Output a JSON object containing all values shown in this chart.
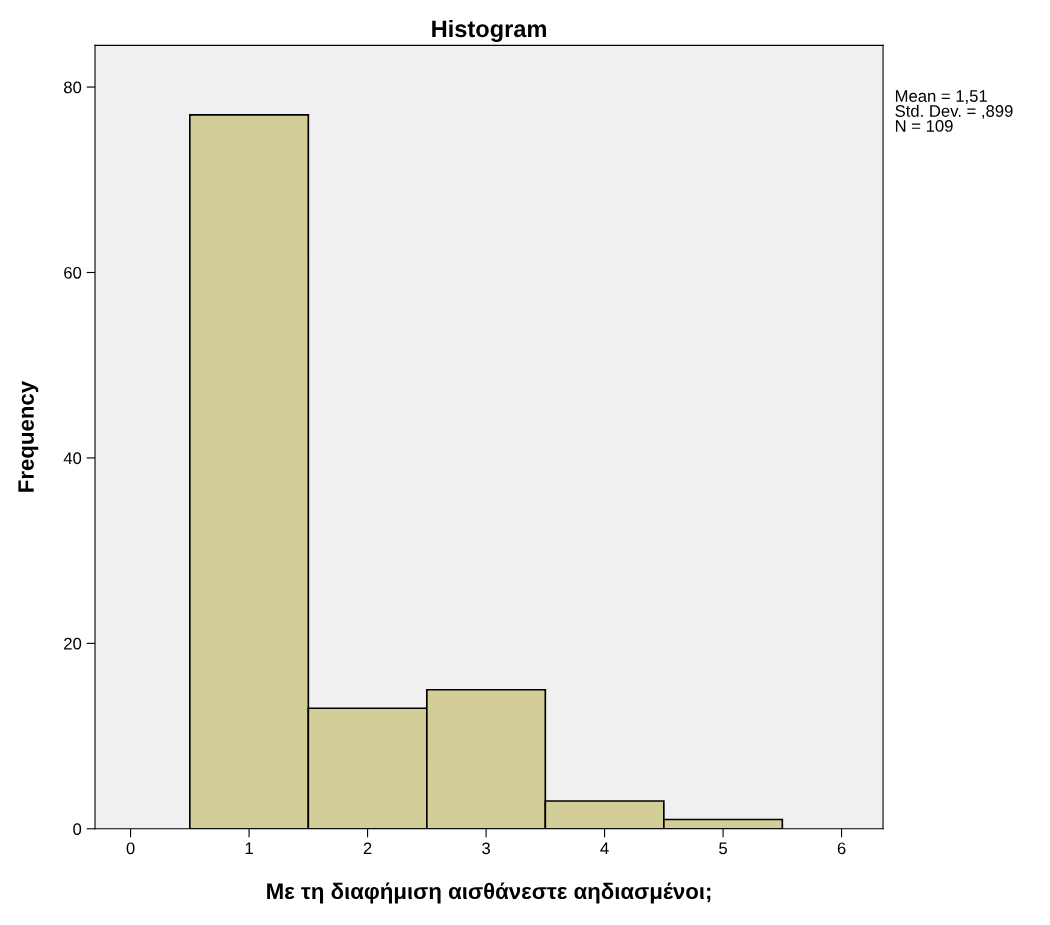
{
  "chart_data": {
    "type": "histogram",
    "title": "Histogram",
    "xlabel": "Με τη διαφήμιση αισθάνεστε αηδιασμένοι;",
    "ylabel": "Frequency",
    "bins": [
      0.5,
      1.5,
      2.5,
      3.5,
      4.5,
      5.5
    ],
    "values": [
      77,
      13,
      15,
      3,
      1
    ],
    "color": "#d3ce97",
    "xlim": [
      -0.3,
      6.35
    ],
    "xticks": [
      0,
      1,
      2,
      3,
      4,
      5,
      6
    ],
    "ylim": [
      0,
      84.5
    ],
    "yticks": [
      0,
      20,
      40,
      60,
      80
    ],
    "grid": false,
    "annotations": [
      "Mean = 1,51\nStd. Dev. = ,899\nN = 109"
    ]
  }
}
